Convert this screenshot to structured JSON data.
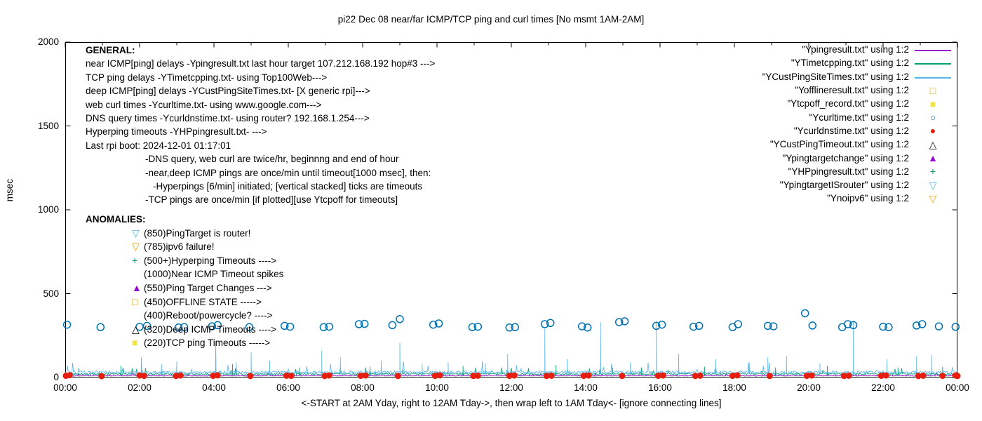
{
  "title": "pi22 Dec 08  near/far ICMP/TCP ping and curl times [No msmt 1AM-2AM]",
  "ylabel": "msec",
  "xlabel": "<-START at 2AM Yday, right to 12AM Tday->, then wrap left to 1AM Tday<- [ignore connecting lines]",
  "general": {
    "heading": "GENERAL:",
    "lines": [
      {
        "indent": 0,
        "text": "near ICMP[ping] delays -Ypingresult.txt last hour target 107.212.168.192 hop#3 --->"
      },
      {
        "indent": 0,
        "text": "TCP ping delays -YTimetcpping.txt- using Top100Web--->"
      },
      {
        "indent": 0,
        "text": "deep ICMP[ping] delays -YCustPingSiteTimes.txt- [X generic rpi]--->"
      },
      {
        "indent": 0,
        "text": "web curl times -Ycurltime.txt- using www.google.com--->"
      },
      {
        "indent": 0,
        "text": "DNS query times -Ycurldnstime.txt- using router? 192.168.1.254--->"
      },
      {
        "indent": 0,
        "text": "Hyperping timeouts -YHPpingresult.txt- --->"
      },
      {
        "indent": 0,
        "text": "Last rpi boot: 2024-12-01 01:17:01"
      },
      {
        "indent": 1,
        "text": "-DNS query, web curl are twice/hr, beginnng and end of hour"
      },
      {
        "indent": 1,
        "text": "-near,deep ICMP pings are once/min until timeout[1000 msec], then:"
      },
      {
        "indent": 2,
        "text": "-Hyperpings [6/min] initiated; [vertical stacked] ticks are timeouts"
      },
      {
        "indent": 1,
        "text": "-TCP pings are once/min [if plotted][use Ytcpoff for timeouts]"
      }
    ]
  },
  "anomalies": {
    "heading": "ANOMALIES:",
    "items": [
      {
        "marker": "triangle-down-open",
        "color": "#56b4e9",
        "text": "(850)PingTarget is router!"
      },
      {
        "marker": "triangle-down-open",
        "color": "#e69f00",
        "text": "(785)ipv6 failure!"
      },
      {
        "marker": "plus",
        "color": "#009e73",
        "text": "(500+)Hyperping Timeouts ---->"
      },
      {
        "marker": "none",
        "color": "#000000",
        "text": "(1000)Near ICMP Timeout spikes"
      },
      {
        "marker": "triangle-filled",
        "color": "#9400d3",
        "text": "(550)Ping Target Changes --->"
      },
      {
        "marker": "square-open",
        "color": "#e69f00",
        "text": "(450)OFFLINE STATE ----->"
      },
      {
        "marker": "none",
        "color": "#000000",
        "text": "(400)Reboot/powercycle? ---->"
      },
      {
        "marker": "triangle-open",
        "color": "#000000",
        "text": "(320)Deep ICMP Timeouts ---->"
      },
      {
        "marker": "square-filled",
        "color": "#f0e442",
        "text": "(220)TCP ping Timeouts ----->"
      }
    ]
  },
  "legend": [
    {
      "label": "\"Ypingresult.txt\" using 1:2",
      "marker": "line",
      "color": "#9400d3"
    },
    {
      "label": "\"YTimetcpping.txt\" using 1:2",
      "marker": "line",
      "color": "#009e73"
    },
    {
      "label": "\"YCustPingSiteTimes.txt\" using 1:2",
      "marker": "line",
      "color": "#56b4e9"
    },
    {
      "label": "\"Yofflineresult.txt\" using 1:2",
      "marker": "square-open",
      "color": "#e69f00"
    },
    {
      "label": "\"Ytcpoff_record.txt\" using 1:2",
      "marker": "square-filled",
      "color": "#f0e442"
    },
    {
      "label": "\"Ycurltime.txt\" using 1:2",
      "marker": "circle-open",
      "color": "#0072b2"
    },
    {
      "label": "\"Ycurldnstime.txt\" using 1:2",
      "marker": "circle-filled",
      "color": "#e51e10"
    },
    {
      "label": "\"YCustPingTimeout.txt\" using 1:2",
      "marker": "triangle-open",
      "color": "#000000"
    },
    {
      "label": "\"Ypingtargetchange\" using 1:2",
      "marker": "triangle-filled",
      "color": "#9400d3"
    },
    {
      "label": "\"YHPpingresult.txt\" using 1:2",
      "marker": "plus",
      "color": "#009e73"
    },
    {
      "label": "\"YpingtargetISrouter\" using 1:2",
      "marker": "triangle-down-open",
      "color": "#56b4e9"
    },
    {
      "label": "\"Ynoipv6\" using 1:2",
      "marker": "triangle-down-open",
      "color": "#e69f00"
    }
  ],
  "chart_data": {
    "type": "line",
    "title": "pi22 Dec 08  near/far ICMP/TCP ping and curl times [No msmt 1AM-2AM]",
    "xlabel": "<-START at 2AM Yday, right to 12AM Tday->, then wrap left to 1AM Tday<- [ignore connecting lines]",
    "ylabel": "msec",
    "xlim_hours": [
      0,
      24
    ],
    "ylim": [
      0,
      2000
    ],
    "y_ticks": [
      0,
      500,
      1000,
      1500,
      2000
    ],
    "x_tick_hours": [
      0,
      2,
      4,
      6,
      8,
      10,
      12,
      14,
      16,
      18,
      20,
      22,
      24
    ],
    "x_tick_labels": [
      "00:00",
      "02:00",
      "04:00",
      "06:00",
      "08:00",
      "10:00",
      "12:00",
      "14:00",
      "16:00",
      "18:00",
      "20:00",
      "22:00",
      "00:00"
    ],
    "grid": false,
    "legend_position": "top-right",
    "series": [
      {
        "name": "Ypingresult.txt",
        "type": "line",
        "color": "#9400d3",
        "baseline": 8,
        "noise": 6,
        "burst": 20,
        "spikes": []
      },
      {
        "name": "YTimetcpping.txt",
        "type": "line",
        "color": "#009e73",
        "baseline": 15,
        "noise": 12,
        "burst": 50,
        "spikes": [
          [
            1.5,
            70
          ],
          [
            4.5,
            80
          ],
          [
            6.3,
            60
          ],
          [
            8.2,
            65
          ],
          [
            10.7,
            70
          ],
          [
            13.2,
            75
          ],
          [
            15.5,
            60
          ],
          [
            17.2,
            65
          ],
          [
            19.1,
            60
          ],
          [
            20.5,
            70
          ],
          [
            22.4,
            60
          ],
          [
            23.6,
            65
          ]
        ]
      },
      {
        "name": "YCustPingSiteTimes.txt",
        "type": "line",
        "color": "#56b4e9",
        "baseline": 22,
        "noise": 18,
        "burst": 70,
        "spikes": [
          [
            2.05,
            120
          ],
          [
            2.6,
            80
          ],
          [
            3.0,
            95
          ],
          [
            4.05,
            215
          ],
          [
            4.6,
            90
          ],
          [
            5.0,
            150
          ],
          [
            5.5,
            100
          ],
          [
            6.9,
            160
          ],
          [
            7.4,
            120
          ],
          [
            8.5,
            100
          ],
          [
            9.0,
            205
          ],
          [
            9.6,
            80
          ],
          [
            10.3,
            90
          ],
          [
            11.3,
            85
          ],
          [
            11.9,
            140
          ],
          [
            12.9,
            290
          ],
          [
            13.5,
            110
          ],
          [
            14.4,
            330
          ],
          [
            15.2,
            90
          ],
          [
            15.9,
            335
          ],
          [
            16.5,
            140
          ],
          [
            17.5,
            110
          ],
          [
            18.4,
            90
          ],
          [
            18.9,
            120
          ],
          [
            19.4,
            130
          ],
          [
            20.3,
            85
          ],
          [
            21.2,
            340
          ],
          [
            22.1,
            110
          ],
          [
            22.9,
            125
          ],
          [
            23.3,
            135
          ]
        ]
      },
      {
        "name": "Ycurltime.txt",
        "type": "scatter",
        "marker": "circle-open",
        "color": "#0072b2",
        "points": [
          [
            0.05,
            315
          ],
          [
            0.95,
            300
          ],
          [
            2.0,
            302
          ],
          [
            2.2,
            308
          ],
          [
            3.05,
            298
          ],
          [
            3.2,
            300
          ],
          [
            3.95,
            305
          ],
          [
            4.1,
            312
          ],
          [
            4.95,
            300
          ],
          [
            5.9,
            308
          ],
          [
            6.05,
            303
          ],
          [
            6.95,
            300
          ],
          [
            7.1,
            303
          ],
          [
            7.9,
            318
          ],
          [
            8.05,
            320
          ],
          [
            8.8,
            312
          ],
          [
            9.0,
            348
          ],
          [
            9.9,
            315
          ],
          [
            10.05,
            322
          ],
          [
            10.95,
            300
          ],
          [
            11.1,
            303
          ],
          [
            11.95,
            298
          ],
          [
            12.1,
            300
          ],
          [
            12.9,
            318
          ],
          [
            13.05,
            325
          ],
          [
            13.9,
            305
          ],
          [
            14.05,
            298
          ],
          [
            14.9,
            330
          ],
          [
            15.05,
            335
          ],
          [
            15.9,
            308
          ],
          [
            16.05,
            315
          ],
          [
            16.9,
            303
          ],
          [
            17.05,
            308
          ],
          [
            17.95,
            300
          ],
          [
            18.1,
            318
          ],
          [
            18.9,
            308
          ],
          [
            19.05,
            305
          ],
          [
            19.9,
            383
          ],
          [
            20.1,
            310
          ],
          [
            20.9,
            300
          ],
          [
            21.05,
            318
          ],
          [
            21.2,
            312
          ],
          [
            22.0,
            303
          ],
          [
            22.15,
            300
          ],
          [
            22.9,
            310
          ],
          [
            23.05,
            318
          ],
          [
            23.5,
            305
          ],
          [
            23.95,
            302
          ]
        ]
      },
      {
        "name": "Ycurldnstime.txt",
        "type": "scatter",
        "marker": "circle-filled",
        "color": "#e51e10",
        "points": [
          [
            0.02,
            10
          ],
          [
            0.12,
            14
          ],
          [
            0.98,
            8
          ],
          [
            2.0,
            12
          ],
          [
            2.12,
            10
          ],
          [
            2.98,
            9
          ],
          [
            3.1,
            12
          ],
          [
            3.98,
            10
          ],
          [
            4.1,
            13
          ],
          [
            4.98,
            9
          ],
          [
            5.95,
            11
          ],
          [
            6.08,
            10
          ],
          [
            6.98,
            9
          ],
          [
            7.1,
            12
          ],
          [
            7.95,
            10
          ],
          [
            8.08,
            12
          ],
          [
            8.95,
            9
          ],
          [
            9.95,
            10
          ],
          [
            10.08,
            13
          ],
          [
            10.98,
            9
          ],
          [
            11.1,
            11
          ],
          [
            11.95,
            10
          ],
          [
            12.08,
            12
          ],
          [
            12.95,
            9
          ],
          [
            13.08,
            11
          ],
          [
            13.95,
            10
          ],
          [
            14.08,
            12
          ],
          [
            14.98,
            9
          ],
          [
            15.95,
            10
          ],
          [
            16.08,
            12
          ],
          [
            16.95,
            9
          ],
          [
            17.08,
            11
          ],
          [
            17.95,
            10
          ],
          [
            18.08,
            13
          ],
          [
            18.95,
            9
          ],
          [
            19.95,
            10
          ],
          [
            20.08,
            12
          ],
          [
            20.95,
            9
          ],
          [
            21.08,
            11
          ],
          [
            21.95,
            10
          ],
          [
            22.08,
            12
          ],
          [
            22.95,
            9
          ],
          [
            23.08,
            11
          ],
          [
            23.6,
            10
          ],
          [
            23.95,
            12
          ],
          [
            24.0,
            9
          ]
        ]
      }
    ]
  }
}
